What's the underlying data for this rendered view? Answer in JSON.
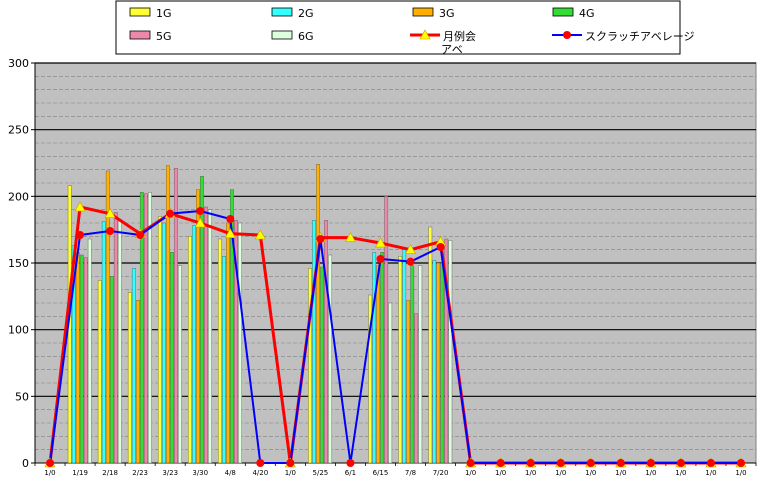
{
  "chart_data": {
    "type": "bar",
    "ylim": [
      0,
      300
    ],
    "yticks": [
      0,
      50,
      100,
      150,
      200,
      250,
      300
    ],
    "grid": true,
    "legend_position": "top",
    "categories": [
      "1/0",
      "1/19",
      "2/18",
      "2/23",
      "3/23",
      "3/30",
      "4/8",
      "4/20",
      "1/0",
      "5/25",
      "6/1",
      "6/15",
      "7/8",
      "7/20",
      "1/0",
      "1/0",
      "1/0",
      "1/0",
      "1/0",
      "1/0",
      "1/0",
      "1/0",
      "1/0",
      "1/0"
    ],
    "series": [
      {
        "name": "1G",
        "kind": "bar",
        "color": "#ffff33",
        "values": [
          0,
          208,
          137,
          128,
          185,
          170,
          168,
          0,
          0,
          146,
          0,
          126,
          155,
          177,
          0,
          0,
          0,
          0,
          0,
          0,
          0,
          0,
          0,
          0
        ]
      },
      {
        "name": "2G",
        "kind": "bar",
        "color": "#33ffff",
        "values": [
          0,
          163,
          181,
          146,
          180,
          178,
          155,
          0,
          0,
          182,
          0,
          158,
          160,
          152,
          0,
          0,
          0,
          0,
          0,
          0,
          0,
          0,
          0,
          0
        ]
      },
      {
        "name": "3G",
        "kind": "bar",
        "color": "#ffb000",
        "values": [
          0,
          158,
          219,
          122,
          223,
          205,
          180,
          0,
          0,
          224,
          0,
          148,
          122,
          150,
          0,
          0,
          0,
          0,
          0,
          0,
          0,
          0,
          0,
          0
        ]
      },
      {
        "name": "4G",
        "kind": "bar",
        "color": "#33dd33",
        "values": [
          0,
          156,
          140,
          203,
          158,
          215,
          205,
          0,
          0,
          147,
          0,
          158,
          148,
          150,
          0,
          0,
          0,
          0,
          0,
          0,
          0,
          0,
          0,
          0
        ]
      },
      {
        "name": "5G",
        "kind": "bar",
        "color": "#ee88aa",
        "values": [
          0,
          154,
          188,
          202,
          221,
          192,
          182,
          0,
          0,
          182,
          0,
          200,
          112,
          168,
          0,
          0,
          0,
          0,
          0,
          0,
          0,
          0,
          0,
          0
        ]
      },
      {
        "name": "6G",
        "kind": "bar",
        "color": "#ddffdd",
        "values": [
          0,
          168,
          182,
          203,
          148,
          190,
          180,
          0,
          0,
          156,
          0,
          120,
          148,
          167,
          0,
          0,
          0,
          0,
          0,
          0,
          0,
          0,
          0,
          0
        ]
      },
      {
        "name": "月例会アベ",
        "kind": "line",
        "color": "#ff0000",
        "marker": "triangle",
        "marker_color": "#ffff00",
        "values": [
          0,
          192,
          187,
          172,
          187,
          180,
          172,
          171,
          0,
          169,
          169,
          165,
          160,
          166,
          0,
          0,
          0,
          0,
          0,
          0,
          0,
          0,
          0,
          0
        ]
      },
      {
        "name": "スクラッチアベレージ",
        "kind": "line",
        "color": "#0000ff",
        "marker": "circle",
        "marker_color": "#ff0000",
        "values": [
          0,
          171,
          174,
          171,
          187,
          189,
          183,
          0,
          0,
          168,
          0,
          153,
          151,
          162,
          0,
          0,
          0,
          0,
          0,
          0,
          0,
          0,
          0,
          0
        ]
      }
    ],
    "legend_labels": {
      "monthly_avg_line1": "月例会",
      "monthly_avg_line2": "アベ"
    }
  }
}
